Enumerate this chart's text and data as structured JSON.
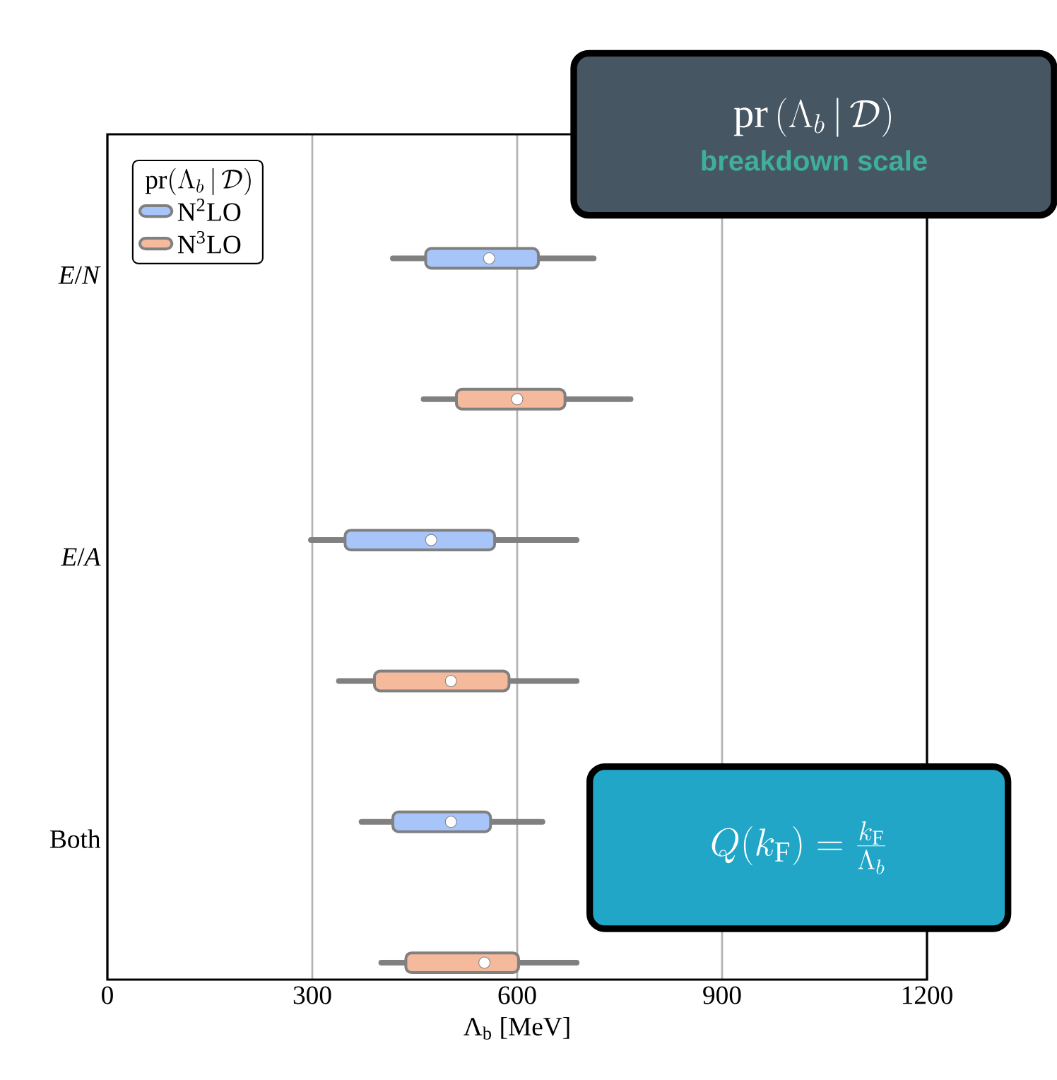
{
  "chart_data": {
    "type": "box",
    "orientation": "horizontal",
    "categories": [
      "*E*/*N*",
      "*E*/*A*",
      "Both"
    ],
    "series": [
      {
        "name": "N$^{2}$LO",
        "color": "#a8c5fa",
        "boxes": [
          {
            "low": 418,
            "q1": 466,
            "median": 559,
            "q3": 631,
            "high": 712
          },
          {
            "low": 298,
            "q1": 348,
            "median": 474,
            "q3": 567,
            "high": 687
          },
          {
            "low": 372,
            "q1": 418,
            "median": 503,
            "q3": 561,
            "high": 637
          }
        ]
      },
      {
        "name": "N$^{3}$LO",
        "color": "#f5b99c",
        "boxes": [
          {
            "low": 463,
            "q1": 511,
            "median": 600,
            "q3": 670,
            "high": 766
          },
          {
            "low": 339,
            "q1": 391,
            "median": 503,
            "q3": 588,
            "high": 687
          },
          {
            "low": 401,
            "q1": 437,
            "median": 552,
            "q3": 602,
            "high": 687
          }
        ]
      }
    ],
    "xlabel": "Λ$_{b}$ [MeV]",
    "legend_title": "\\mathrm{pr}(\\Lambda_b\\,|\\,\\mathcal{D})",
    "legend": "top left",
    "xlim": [
      0,
      1200
    ],
    "xticks": [
      0,
      300,
      600,
      900,
      1200
    ],
    "grid": "x",
    "annotations": [
      "\\mathrm{pr}\\,(\\Lambda_b\\,|\\,\\mathcal{D})",
      "**breakdown scale**",
      "Q(k_{\\mathrm{F}}) = \\frac{k_{\\mathrm{F}}}{\\Lambda_b}"
    ]
  }
}
